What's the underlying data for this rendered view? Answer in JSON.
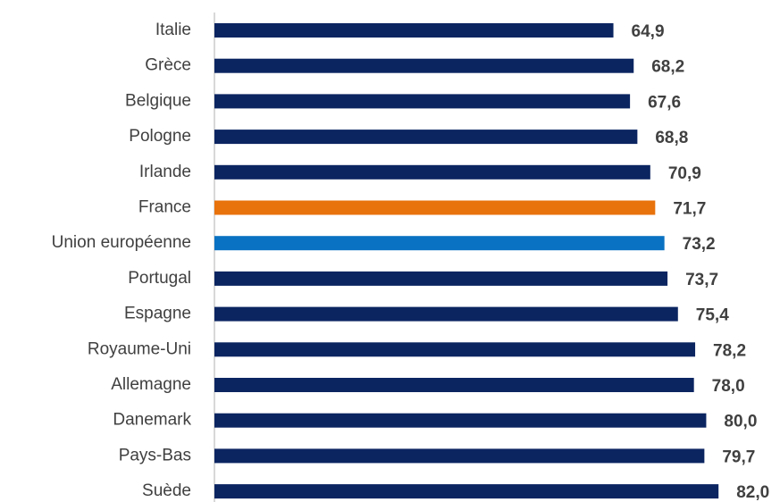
{
  "chart_data": {
    "type": "bar",
    "orientation": "horizontal",
    "categories": [
      "Italie",
      "Grèce",
      "Belgique",
      "Pologne",
      "Irlande",
      "France",
      "Union européenne",
      "Portugal",
      "Espagne",
      "Royaume-Uni",
      "Allemagne",
      "Danemark",
      "Pays-Bas",
      "Suède"
    ],
    "values": [
      64.9,
      68.2,
      67.6,
      68.8,
      70.9,
      71.7,
      73.2,
      73.7,
      75.4,
      78.2,
      78.0,
      80.0,
      79.7,
      82.0
    ],
    "value_labels": [
      "64,9",
      "68,2",
      "67,6",
      "68,8",
      "70,9",
      "71,7",
      "73,2",
      "73,7",
      "75,4",
      "78,2",
      "78,0",
      "80,0",
      "79,7",
      "82,0"
    ],
    "colors": [
      "#0b2561",
      "#0b2561",
      "#0b2561",
      "#0b2561",
      "#0b2561",
      "#e8720c",
      "#0a72c2",
      "#0b2561",
      "#0b2561",
      "#0b2561",
      "#0b2561",
      "#0b2561",
      "#0b2561",
      "#0b2561"
    ],
    "xlim": [
      0,
      92
    ]
  }
}
